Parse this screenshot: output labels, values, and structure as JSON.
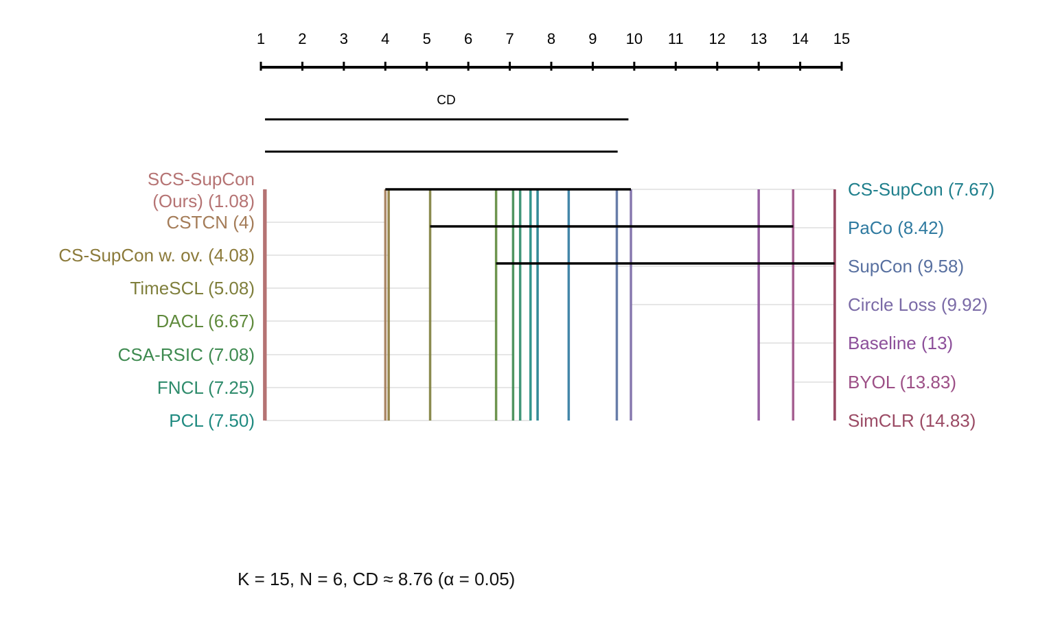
{
  "chart_data": {
    "type": "critical_difference",
    "axis": {
      "min": 1,
      "max": 15,
      "ticks": [
        1,
        2,
        3,
        4,
        5,
        6,
        7,
        8,
        9,
        10,
        11,
        12,
        13,
        14,
        15
      ]
    },
    "cd_label": "CD",
    "cd_value": 8.76,
    "cd_bars": [
      {
        "from": 1.1,
        "to": 9.86
      },
      {
        "from": 1.1,
        "to": 9.6
      }
    ],
    "left_methods": [
      {
        "name": "SCS-SupCon (Ours)",
        "rank": 1.08,
        "line1": "SCS-SupCon",
        "line2": "(Ours) (1.08)",
        "color": "#b57373"
      },
      {
        "name": "CSTCN",
        "rank": 4,
        "line1": "CSTCN (4)",
        "color": "#a47c58"
      },
      {
        "name": "CS-SupCon w. ov.",
        "rank": 4.08,
        "line1": "CS-SupCon w. ov. (4.08)",
        "color": "#8b7a3a"
      },
      {
        "name": "TimeSCL",
        "rank": 5.08,
        "line1": "TimeSCL (5.08)",
        "color": "#7f7f3c"
      },
      {
        "name": "DACL",
        "rank": 6.67,
        "line1": "DACL (6.67)",
        "color": "#5f8a3c"
      },
      {
        "name": "CSA-RSIC",
        "rank": 7.08,
        "line1": "CSA-RSIC (7.08)",
        "color": "#3e8a50"
      },
      {
        "name": "FNCL",
        "rank": 7.25,
        "line1": "FNCL (7.25)",
        "color": "#2e8b6b"
      },
      {
        "name": "PCL",
        "rank": 7.5,
        "line1": "PCL (7.50)",
        "color": "#1f8a80"
      }
    ],
    "right_methods": [
      {
        "name": "CS-SupCon",
        "rank": 7.67,
        "line1": "CS-SupCon (7.67)",
        "color": "#1f7f8c"
      },
      {
        "name": "PaCo",
        "rank": 8.42,
        "line1": "PaCo (8.42)",
        "color": "#2f7aa0"
      },
      {
        "name": "SupCon",
        "rank": 9.58,
        "line1": "SupCon (9.58)",
        "color": "#5870a0"
      },
      {
        "name": "Circle Loss",
        "rank": 9.92,
        "line1": "Circle Loss (9.92)",
        "color": "#7a6aa6"
      },
      {
        "name": "Baseline",
        "rank": 13,
        "line1": "Baseline (13)",
        "color": "#8c4f9a"
      },
      {
        "name": "BYOL",
        "rank": 13.83,
        "line1": "BYOL (13.83)",
        "color": "#9c4f86"
      },
      {
        "name": "SimCLR",
        "rank": 14.83,
        "line1": "SimCLR (14.83)",
        "color": "#9a4a64"
      }
    ],
    "cliques": [
      {
        "from": 4,
        "to": 9.92
      },
      {
        "from": 5.08,
        "to": 13.83
      },
      {
        "from": 6.67,
        "to": 14.83
      }
    ],
    "footer": "K = 15, N = 6, CD ≈ 8.76 (α = 0.05)"
  }
}
